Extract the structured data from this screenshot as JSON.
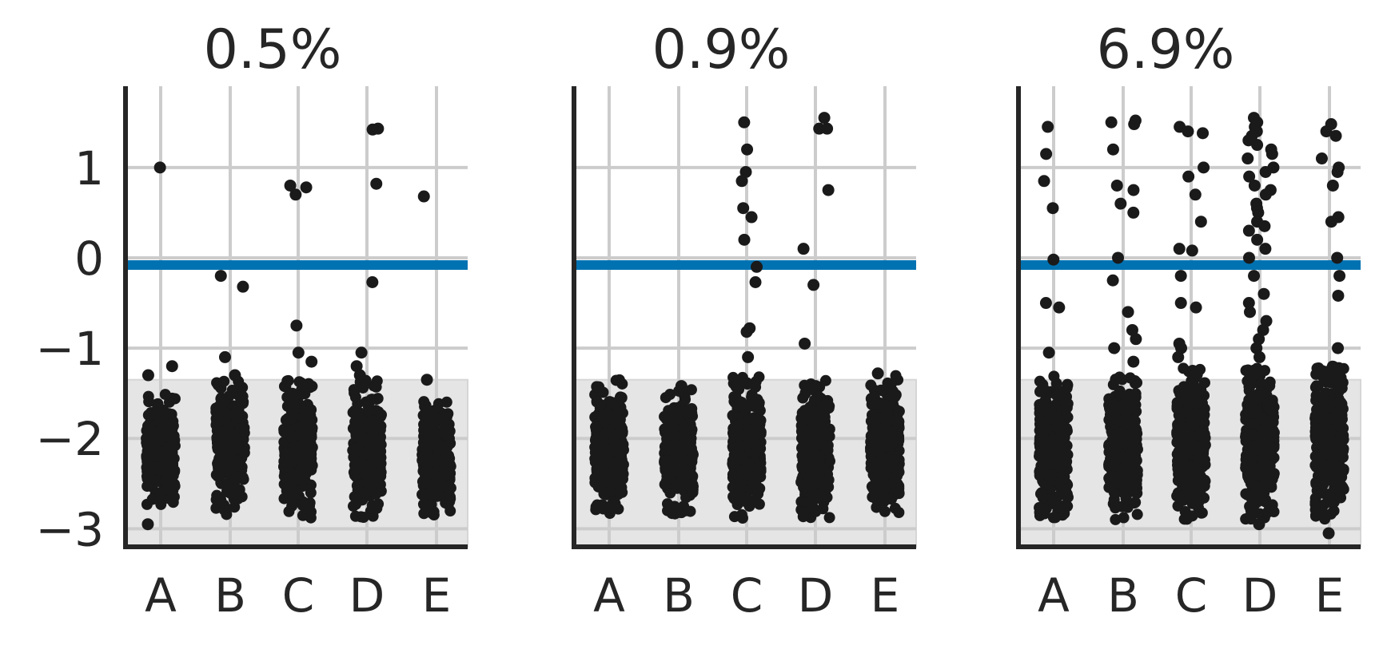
{
  "chart_data": {
    "type": "scatter",
    "categories": [
      "A",
      "B",
      "C",
      "D",
      "E"
    ],
    "yticks": [
      -3,
      -2,
      -1,
      0,
      1
    ],
    "ytick_labels": [
      "−3",
      "−2",
      "−1",
      "0",
      "1"
    ],
    "ylim": [
      -3.2,
      1.9
    ],
    "reference_line": {
      "y": -0.08,
      "color": "#0072B2"
    },
    "shaded_band": {
      "y0": -3.2,
      "y1": -1.35,
      "color": "#e5e5e5"
    },
    "grid": true,
    "point_color": "#1a1a1a",
    "panels": [
      {
        "title": "0.5%",
        "clusters": [
          {
            "category": "A",
            "n": 260,
            "y_min": -2.75,
            "y_max": -1.5
          },
          {
            "category": "B",
            "n": 260,
            "y_min": -2.85,
            "y_max": -1.35
          },
          {
            "category": "C",
            "n": 260,
            "y_min": -2.9,
            "y_max": -1.35
          },
          {
            "category": "D",
            "n": 260,
            "y_min": -2.9,
            "y_max": -1.35
          },
          {
            "category": "E",
            "n": 260,
            "y_min": -2.85,
            "y_max": -1.55
          }
        ],
        "outliers": [
          {
            "category": "A",
            "y": 1.0
          },
          {
            "category": "A",
            "y": -1.2
          },
          {
            "category": "A",
            "y": -1.3
          },
          {
            "category": "A",
            "y": -2.95
          },
          {
            "category": "B",
            "y": -0.2
          },
          {
            "category": "B",
            "y": -0.32
          },
          {
            "category": "B",
            "y": -1.1
          },
          {
            "category": "B",
            "y": -1.3
          },
          {
            "category": "C",
            "y": 0.78
          },
          {
            "category": "C",
            "y": 0.7
          },
          {
            "category": "C",
            "y": 0.8
          },
          {
            "category": "C",
            "y": -0.75
          },
          {
            "category": "C",
            "y": -1.05
          },
          {
            "category": "C",
            "y": -1.15
          },
          {
            "category": "D",
            "y": 1.42
          },
          {
            "category": "D",
            "y": 1.43
          },
          {
            "category": "D",
            "y": 0.82
          },
          {
            "category": "D",
            "y": -0.27
          },
          {
            "category": "D",
            "y": -1.05
          },
          {
            "category": "D",
            "y": -1.2
          },
          {
            "category": "D",
            "y": -1.3
          },
          {
            "category": "E",
            "y": 0.68
          },
          {
            "category": "E",
            "y": -1.35
          }
        ]
      },
      {
        "title": "0.9%",
        "clusters": [
          {
            "category": "A",
            "n": 280,
            "y_min": -2.85,
            "y_max": -1.3
          },
          {
            "category": "B",
            "n": 260,
            "y_min": -2.85,
            "y_max": -1.45
          },
          {
            "category": "C",
            "n": 300,
            "y_min": -2.9,
            "y_max": -1.3
          },
          {
            "category": "D",
            "n": 320,
            "y_min": -2.95,
            "y_max": -1.35
          },
          {
            "category": "E",
            "n": 300,
            "y_min": -2.85,
            "y_max": -1.3
          }
        ],
        "outliers": [
          {
            "category": "B",
            "y": -1.42
          },
          {
            "category": "C",
            "y": 1.5
          },
          {
            "category": "C",
            "y": 1.2
          },
          {
            "category": "C",
            "y": 0.95
          },
          {
            "category": "C",
            "y": 0.85
          },
          {
            "category": "C",
            "y": 0.55
          },
          {
            "category": "C",
            "y": 0.45
          },
          {
            "category": "C",
            "y": 0.2
          },
          {
            "category": "C",
            "y": -0.1
          },
          {
            "category": "C",
            "y": -0.27
          },
          {
            "category": "C",
            "y": -0.78
          },
          {
            "category": "C",
            "y": -0.82
          },
          {
            "category": "C",
            "y": -1.1
          },
          {
            "category": "D",
            "y": 1.43
          },
          {
            "category": "D",
            "y": 1.43
          },
          {
            "category": "D",
            "y": 1.55
          },
          {
            "category": "D",
            "y": 0.75
          },
          {
            "category": "D",
            "y": 0.1
          },
          {
            "category": "D",
            "y": -0.3
          },
          {
            "category": "D",
            "y": -0.95
          },
          {
            "category": "E",
            "y": -1.28
          }
        ]
      },
      {
        "title": "6.9%",
        "clusters": [
          {
            "category": "A",
            "n": 320,
            "y_min": -2.9,
            "y_max": -1.3
          },
          {
            "category": "B",
            "n": 340,
            "y_min": -2.9,
            "y_max": -1.3
          },
          {
            "category": "C",
            "n": 360,
            "y_min": -2.9,
            "y_max": -1.2
          },
          {
            "category": "D",
            "n": 380,
            "y_min": -2.9,
            "y_max": -1.2
          },
          {
            "category": "E",
            "n": 380,
            "y_min": -2.9,
            "y_max": -1.2
          }
        ],
        "outliers": [
          {
            "category": "A",
            "y": 1.45
          },
          {
            "category": "A",
            "y": 1.15
          },
          {
            "category": "A",
            "y": 0.85
          },
          {
            "category": "A",
            "y": 0.55
          },
          {
            "category": "A",
            "y": -0.02
          },
          {
            "category": "A",
            "y": -0.5
          },
          {
            "category": "A",
            "y": -0.55
          },
          {
            "category": "A",
            "y": -1.05
          },
          {
            "category": "B",
            "y": 1.5
          },
          {
            "category": "B",
            "y": 1.52
          },
          {
            "category": "B",
            "y": 1.48
          },
          {
            "category": "B",
            "y": 1.2
          },
          {
            "category": "B",
            "y": 0.8
          },
          {
            "category": "B",
            "y": 0.75
          },
          {
            "category": "B",
            "y": 0.6
          },
          {
            "category": "B",
            "y": 0.5
          },
          {
            "category": "B",
            "y": 0.0
          },
          {
            "category": "B",
            "y": -0.25
          },
          {
            "category": "B",
            "y": -0.6
          },
          {
            "category": "B",
            "y": -0.8
          },
          {
            "category": "B",
            "y": -0.9
          },
          {
            "category": "B",
            "y": -1.0
          },
          {
            "category": "B",
            "y": -1.15
          },
          {
            "category": "C",
            "y": 1.45
          },
          {
            "category": "C",
            "y": 1.4
          },
          {
            "category": "C",
            "y": 1.38
          },
          {
            "category": "C",
            "y": 1.0
          },
          {
            "category": "C",
            "y": 0.9
          },
          {
            "category": "C",
            "y": 0.7
          },
          {
            "category": "C",
            "y": 0.4
          },
          {
            "category": "C",
            "y": 0.1
          },
          {
            "category": "C",
            "y": 0.08
          },
          {
            "category": "C",
            "y": -0.2
          },
          {
            "category": "C",
            "y": -0.5
          },
          {
            "category": "C",
            "y": -0.55
          },
          {
            "category": "C",
            "y": -0.95
          },
          {
            "category": "C",
            "y": -1.0
          },
          {
            "category": "C",
            "y": -1.1
          },
          {
            "category": "D",
            "y": 1.5
          },
          {
            "category": "D",
            "y": 1.4
          },
          {
            "category": "D",
            "y": 1.3
          },
          {
            "category": "D",
            "y": 1.2
          },
          {
            "category": "D",
            "y": 1.1
          },
          {
            "category": "D",
            "y": 1.0
          },
          {
            "category": "D",
            "y": 0.9
          },
          {
            "category": "D",
            "y": 0.8
          },
          {
            "category": "D",
            "y": 0.7
          },
          {
            "category": "D",
            "y": 0.6
          },
          {
            "category": "D",
            "y": 0.5
          },
          {
            "category": "D",
            "y": 0.4
          },
          {
            "category": "D",
            "y": 0.3
          },
          {
            "category": "D",
            "y": 0.2
          },
          {
            "category": "D",
            "y": 0.1
          },
          {
            "category": "D",
            "y": 0.0
          },
          {
            "category": "D",
            "y": -0.2
          },
          {
            "category": "D",
            "y": -0.4
          },
          {
            "category": "D",
            "y": -0.5
          },
          {
            "category": "D",
            "y": -0.6
          },
          {
            "category": "D",
            "y": -0.7
          },
          {
            "category": "D",
            "y": -0.8
          },
          {
            "category": "D",
            "y": -0.9
          },
          {
            "category": "D",
            "y": -1.0
          },
          {
            "category": "D",
            "y": -1.1
          },
          {
            "category": "D",
            "y": -2.95
          },
          {
            "category": "D",
            "y": 1.55
          },
          {
            "category": "D",
            "y": 1.45
          },
          {
            "category": "D",
            "y": 1.35
          },
          {
            "category": "D",
            "y": 1.25
          },
          {
            "category": "D",
            "y": 1.15
          },
          {
            "category": "D",
            "y": 0.95
          },
          {
            "category": "D",
            "y": 0.75
          },
          {
            "category": "D",
            "y": 0.55
          },
          {
            "category": "D",
            "y": 0.35
          },
          {
            "category": "E",
            "y": 1.48
          },
          {
            "category": "E",
            "y": 1.4
          },
          {
            "category": "E",
            "y": 1.35
          },
          {
            "category": "E",
            "y": 1.1
          },
          {
            "category": "E",
            "y": 1.0
          },
          {
            "category": "E",
            "y": 0.95
          },
          {
            "category": "E",
            "y": 0.8
          },
          {
            "category": "E",
            "y": 0.45
          },
          {
            "category": "E",
            "y": 0.4
          },
          {
            "category": "E",
            "y": 0.0
          },
          {
            "category": "E",
            "y": -0.2
          },
          {
            "category": "E",
            "y": -0.42
          },
          {
            "category": "E",
            "y": -1.0
          },
          {
            "category": "E",
            "y": -3.05
          }
        ]
      }
    ]
  }
}
